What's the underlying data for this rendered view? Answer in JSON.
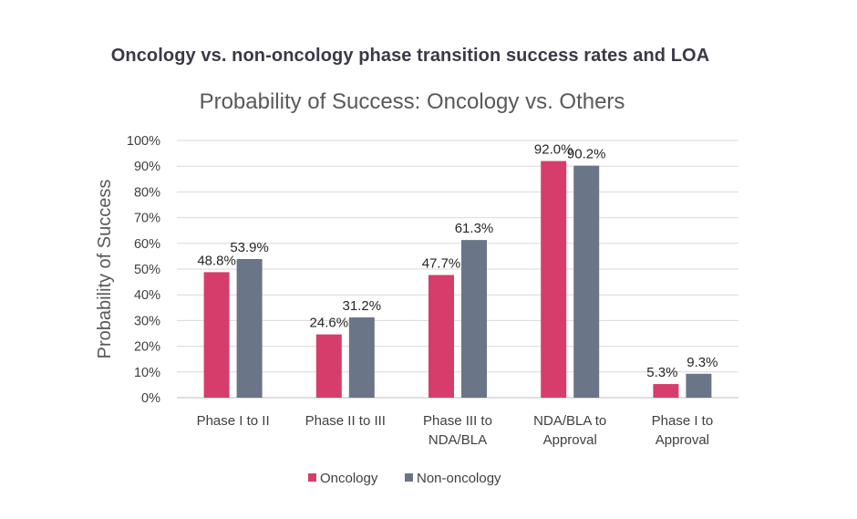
{
  "page_title": "Oncology vs. non-oncology phase transition success rates and LOA",
  "colors": {
    "oncology": "#d63d6b",
    "non_oncology": "#6a7587",
    "grid": "#d9d9d9"
  },
  "chart_data": {
    "type": "bar",
    "title": "Probability of Success: Oncology vs. Others",
    "xlabel": "",
    "ylabel": "Probability of Success",
    "ylim": [
      0,
      100
    ],
    "yticks": [
      "0%",
      "10%",
      "20%",
      "30%",
      "40%",
      "50%",
      "60%",
      "70%",
      "80%",
      "90%",
      "100%"
    ],
    "categories": [
      [
        "Phase I to II"
      ],
      [
        "Phase II to III"
      ],
      [
        "Phase III to",
        "NDA/BLA"
      ],
      [
        "NDA/BLA to",
        "Approval"
      ],
      [
        "Phase I to",
        "Approval"
      ]
    ],
    "series": [
      {
        "name": "Oncology",
        "color": "#d63d6b",
        "values": [
          48.8,
          24.6,
          47.7,
          92.0,
          5.3
        ],
        "labels": [
          "48.8%",
          "24.6%",
          "47.7%",
          "92.0%",
          "5.3%"
        ]
      },
      {
        "name": "Non-oncology",
        "color": "#6a7587",
        "values": [
          53.9,
          31.2,
          61.3,
          90.2,
          9.3
        ],
        "labels": [
          "53.9%",
          "31.2%",
          "61.3%",
          "90.2%",
          "9.3%"
        ]
      }
    ],
    "legend": "bottom",
    "grid": true
  }
}
